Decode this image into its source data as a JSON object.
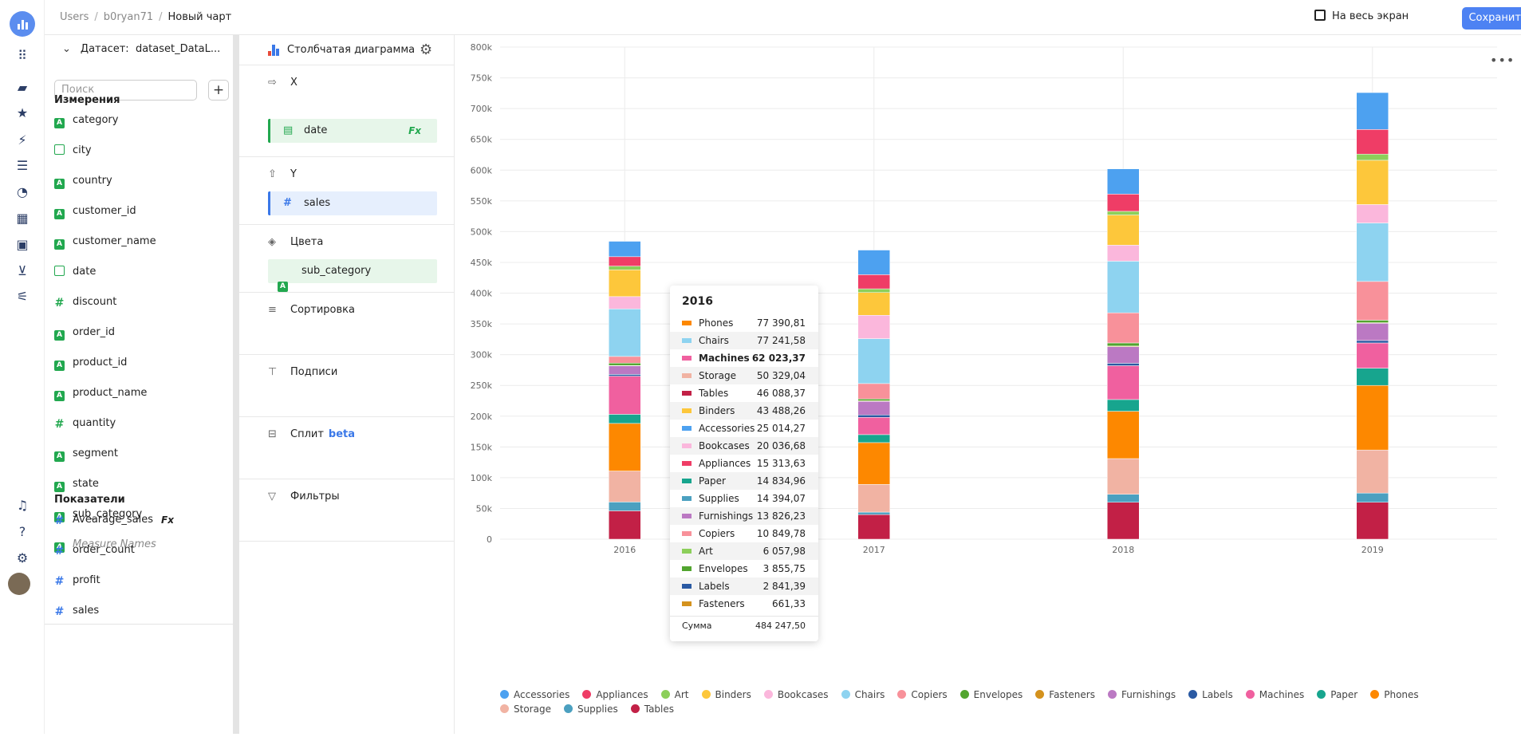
{
  "breadcrumbs": [
    "Users",
    "b0ryan71",
    "Новый чарт"
  ],
  "header": {
    "fullscreen_label": "На весь экран",
    "save_label": "Сохранить"
  },
  "dataset": {
    "prefix": "Датасет:",
    "name": "dataset_DataL...",
    "search_placeholder": "Поиск",
    "dimensions_title": "Измерения",
    "dimensions": [
      {
        "name": "category",
        "type": "str"
      },
      {
        "name": "city",
        "type": "geo"
      },
      {
        "name": "country",
        "type": "str"
      },
      {
        "name": "customer_id",
        "type": "str"
      },
      {
        "name": "customer_name",
        "type": "str"
      },
      {
        "name": "date",
        "type": "dt"
      },
      {
        "name": "discount",
        "type": "num"
      },
      {
        "name": "order_id",
        "type": "str"
      },
      {
        "name": "product_id",
        "type": "str"
      },
      {
        "name": "product_name",
        "type": "str"
      },
      {
        "name": "quantity",
        "type": "num"
      },
      {
        "name": "segment",
        "type": "str"
      },
      {
        "name": "state",
        "type": "str"
      },
      {
        "name": "sub_category",
        "type": "str"
      },
      {
        "name": "Measure Names",
        "type": "str",
        "muted": true
      }
    ],
    "measures_title": "Показатели",
    "measures": [
      {
        "name": "Avearage_sales",
        "fx": "Fx"
      },
      {
        "name": "order_count"
      },
      {
        "name": "profit"
      },
      {
        "name": "sales"
      }
    ]
  },
  "wells": {
    "chart_type": "Столбчатая диаграмма",
    "x_title": "X",
    "x_field": "date",
    "x_fx": "Fx",
    "y_title": "Y",
    "y_field": "sales",
    "colors_title": "Цвета",
    "colors_field": "sub_category",
    "sort_title": "Сортировка",
    "labels_title": "Подписи",
    "split_title": "Сплит",
    "split_badge": "beta",
    "filters_title": "Фильтры"
  },
  "tooltip": {
    "title": "2016",
    "rows": [
      {
        "name": "Phones",
        "value": "77 390,81"
      },
      {
        "name": "Chairs",
        "value": "77 241,58"
      },
      {
        "name": "Machines",
        "value": "62 023,37",
        "bold": true
      },
      {
        "name": "Storage",
        "value": "50 329,04"
      },
      {
        "name": "Tables",
        "value": "46 088,37"
      },
      {
        "name": "Binders",
        "value": "43 488,26"
      },
      {
        "name": "Accessories",
        "value": "25 014,27"
      },
      {
        "name": "Bookcases",
        "value": "20 036,68"
      },
      {
        "name": "Appliances",
        "value": "15 313,63"
      },
      {
        "name": "Paper",
        "value": "14 834,96"
      },
      {
        "name": "Supplies",
        "value": "14 394,07"
      },
      {
        "name": "Furnishings",
        "value": "13 826,23"
      },
      {
        "name": "Copiers",
        "value": "10 849,78"
      },
      {
        "name": "Art",
        "value": "6 057,98"
      },
      {
        "name": "Envelopes",
        "value": "3 855,75"
      },
      {
        "name": "Labels",
        "value": "2 841,39"
      },
      {
        "name": "Fasteners",
        "value": "661,33"
      }
    ],
    "sum_label": "Сумма",
    "sum_value": "484 247,50"
  },
  "chart_data": {
    "type": "bar",
    "stacked": true,
    "categories": [
      "2016",
      "2017",
      "2018",
      "2019"
    ],
    "ylim": [
      0,
      800000
    ],
    "yticks": [
      "0",
      "50k",
      "100k",
      "150k",
      "200k",
      "250k",
      "300k",
      "350k",
      "400k",
      "450k",
      "500k",
      "550k",
      "600k",
      "650k",
      "700k",
      "750k",
      "800k"
    ],
    "grid": true,
    "legend_position": "bottom",
    "series": [
      {
        "name": "Accessories",
        "color": "#4da1f0",
        "values": [
          25014,
          40000,
          41000,
          60000
        ]
      },
      {
        "name": "Appliances",
        "color": "#ef3d66",
        "values": [
          15314,
          23000,
          28000,
          40000
        ]
      },
      {
        "name": "Art",
        "color": "#8ccf5a",
        "values": [
          6058,
          6000,
          6000,
          10000
        ]
      },
      {
        "name": "Binders",
        "color": "#fdc73b",
        "values": [
          43488,
          37000,
          49000,
          72000
        ]
      },
      {
        "name": "Bookcases",
        "color": "#fbb7dc",
        "values": [
          20037,
          38000,
          26000,
          30000
        ]
      },
      {
        "name": "Chairs",
        "color": "#8ed3f0",
        "values": [
          77242,
          73000,
          84000,
          95000
        ]
      },
      {
        "name": "Copiers",
        "color": "#f8919a",
        "values": [
          10850,
          25000,
          49000,
          63000
        ]
      },
      {
        "name": "Envelopes",
        "color": "#52a52f",
        "values": [
          3856,
          3000,
          5000,
          4000
        ]
      },
      {
        "name": "Fasteners",
        "color": "#d4921d",
        "values": [
          661,
          1000,
          1000,
          1000
        ]
      },
      {
        "name": "Furnishings",
        "color": "#bb79c3",
        "values": [
          13826,
          22000,
          27000,
          28000
        ]
      },
      {
        "name": "Labels",
        "color": "#2a5aa3",
        "values": [
          2841,
          4000,
          4000,
          4000
        ]
      },
      {
        "name": "Machines",
        "color": "#f0609f",
        "values": [
          62023,
          28000,
          55000,
          41000
        ]
      },
      {
        "name": "Paper",
        "color": "#17a58e",
        "values": [
          14835,
          13000,
          19000,
          28000
        ]
      },
      {
        "name": "Phones",
        "color": "#fd8800",
        "values": [
          77391,
          68000,
          77000,
          105000
        ]
      },
      {
        "name": "Storage",
        "color": "#f1b3a3",
        "values": [
          50329,
          45000,
          58000,
          70000
        ]
      },
      {
        "name": "Supplies",
        "color": "#4ba0c0",
        "values": [
          14394,
          4000,
          13000,
          15000
        ]
      },
      {
        "name": "Tables",
        "color": "#c22046",
        "values": [
          46088,
          40000,
          60000,
          60000
        ]
      }
    ]
  }
}
